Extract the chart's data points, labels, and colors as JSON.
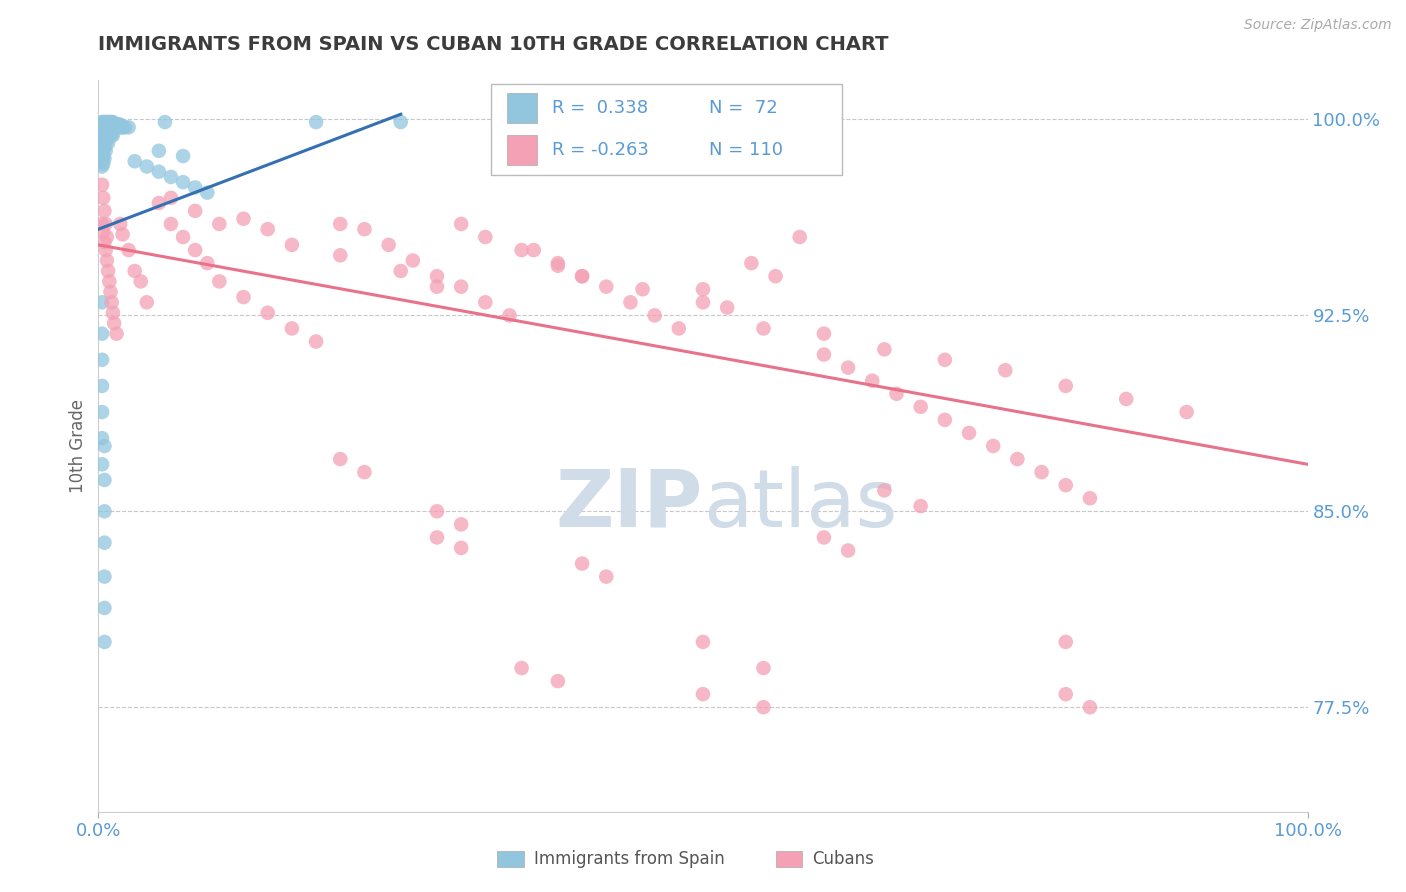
{
  "title": "IMMIGRANTS FROM SPAIN VS CUBAN 10TH GRADE CORRELATION CHART",
  "source_text": "Source: ZipAtlas.com",
  "ylabel": "10th Grade",
  "y_tick_labels": [
    "77.5%",
    "85.0%",
    "92.5%",
    "100.0%"
  ],
  "y_tick_values": [
    0.775,
    0.85,
    0.925,
    1.0
  ],
  "xlim": [
    0.0,
    1.0
  ],
  "ylim": [
    0.735,
    1.015
  ],
  "color1": "#92c5de",
  "color2": "#f4a0b5",
  "trend1_color": "#3470b2",
  "trend2_color": "#e8728a",
  "axis_color": "#5b9bd5",
  "grid_color": "#c8c8c8",
  "title_color": "#3c3c3c",
  "watermark_color": "#d0dce8",
  "label1": "Immigrants from Spain",
  "label2": "Cubans",
  "legend_text": [
    "R =  0.338",
    "N =  72",
    "R = -0.263",
    "N = 110"
  ],
  "blue_x": [
    0.003,
    0.004,
    0.005,
    0.006,
    0.007,
    0.008,
    0.009,
    0.01,
    0.011,
    0.012,
    0.013,
    0.014,
    0.015,
    0.016,
    0.017,
    0.018,
    0.019,
    0.02,
    0.022,
    0.025,
    0.003,
    0.004,
    0.005,
    0.006,
    0.007,
    0.008,
    0.009,
    0.01,
    0.011,
    0.012,
    0.003,
    0.004,
    0.005,
    0.006,
    0.007,
    0.008,
    0.003,
    0.004,
    0.005,
    0.006,
    0.003,
    0.004,
    0.005,
    0.003,
    0.004,
    0.003,
    0.18,
    0.25,
    0.055,
    0.005,
    0.005,
    0.005,
    0.005,
    0.005,
    0.005,
    0.005,
    0.003,
    0.003,
    0.003,
    0.003,
    0.003,
    0.003,
    0.003,
    0.05,
    0.07,
    0.03,
    0.04,
    0.05,
    0.06,
    0.07,
    0.08,
    0.09
  ],
  "blue_y": [
    0.999,
    0.999,
    0.999,
    0.999,
    0.999,
    0.999,
    0.999,
    0.999,
    0.999,
    0.999,
    0.998,
    0.998,
    0.998,
    0.998,
    0.998,
    0.998,
    0.997,
    0.997,
    0.997,
    0.997,
    0.996,
    0.996,
    0.996,
    0.996,
    0.996,
    0.995,
    0.995,
    0.995,
    0.994,
    0.994,
    0.993,
    0.993,
    0.993,
    0.992,
    0.992,
    0.991,
    0.99,
    0.99,
    0.989,
    0.988,
    0.987,
    0.986,
    0.985,
    0.984,
    0.983,
    0.982,
    0.999,
    0.999,
    0.999,
    0.875,
    0.862,
    0.85,
    0.838,
    0.825,
    0.813,
    0.8,
    0.93,
    0.918,
    0.908,
    0.898,
    0.888,
    0.878,
    0.868,
    0.988,
    0.986,
    0.984,
    0.982,
    0.98,
    0.978,
    0.976,
    0.974,
    0.972
  ],
  "pink_x": [
    0.003,
    0.004,
    0.005,
    0.006,
    0.007,
    0.008,
    0.009,
    0.01,
    0.011,
    0.012,
    0.013,
    0.015,
    0.018,
    0.02,
    0.025,
    0.03,
    0.035,
    0.04,
    0.05,
    0.06,
    0.07,
    0.08,
    0.09,
    0.1,
    0.12,
    0.14,
    0.16,
    0.18,
    0.2,
    0.22,
    0.24,
    0.26,
    0.28,
    0.3,
    0.32,
    0.34,
    0.36,
    0.38,
    0.4,
    0.42,
    0.44,
    0.46,
    0.48,
    0.5,
    0.52,
    0.54,
    0.56,
    0.58,
    0.6,
    0.62,
    0.64,
    0.66,
    0.68,
    0.7,
    0.72,
    0.74,
    0.76,
    0.78,
    0.8,
    0.82,
    0.06,
    0.08,
    0.1,
    0.12,
    0.14,
    0.16,
    0.2,
    0.25,
    0.28,
    0.3,
    0.32,
    0.35,
    0.38,
    0.4,
    0.45,
    0.5,
    0.55,
    0.6,
    0.65,
    0.7,
    0.75,
    0.8,
    0.85,
    0.9,
    0.2,
    0.22,
    0.28,
    0.3,
    0.5,
    0.55,
    0.8,
    0.35,
    0.38,
    0.65,
    0.68,
    0.5,
    0.55,
    0.8,
    0.82,
    0.4,
    0.42,
    0.28,
    0.3,
    0.6,
    0.62,
    0.003,
    0.004,
    0.005,
    0.006,
    0.007
  ],
  "pink_y": [
    0.96,
    0.957,
    0.953,
    0.95,
    0.946,
    0.942,
    0.938,
    0.934,
    0.93,
    0.926,
    0.922,
    0.918,
    0.96,
    0.956,
    0.95,
    0.942,
    0.938,
    0.93,
    0.968,
    0.96,
    0.955,
    0.95,
    0.945,
    0.938,
    0.932,
    0.926,
    0.92,
    0.915,
    0.96,
    0.958,
    0.952,
    0.946,
    0.94,
    0.936,
    0.93,
    0.925,
    0.95,
    0.945,
    0.94,
    0.936,
    0.93,
    0.925,
    0.92,
    0.935,
    0.928,
    0.945,
    0.94,
    0.955,
    0.91,
    0.905,
    0.9,
    0.895,
    0.89,
    0.885,
    0.88,
    0.875,
    0.87,
    0.865,
    0.86,
    0.855,
    0.97,
    0.965,
    0.96,
    0.962,
    0.958,
    0.952,
    0.948,
    0.942,
    0.936,
    0.96,
    0.955,
    0.95,
    0.944,
    0.94,
    0.935,
    0.93,
    0.92,
    0.918,
    0.912,
    0.908,
    0.904,
    0.898,
    0.893,
    0.888,
    0.87,
    0.865,
    0.85,
    0.845,
    0.8,
    0.79,
    0.8,
    0.79,
    0.785,
    0.858,
    0.852,
    0.78,
    0.775,
    0.78,
    0.775,
    0.83,
    0.825,
    0.84,
    0.836,
    0.84,
    0.835,
    0.975,
    0.97,
    0.965,
    0.96,
    0.955
  ],
  "trend1_x0": 0.0,
  "trend1_y0": 0.958,
  "trend1_x1": 0.25,
  "trend1_y1": 1.002,
  "trend2_x0": 0.0,
  "trend2_y0": 0.952,
  "trend2_x1": 1.0,
  "trend2_y1": 0.868
}
